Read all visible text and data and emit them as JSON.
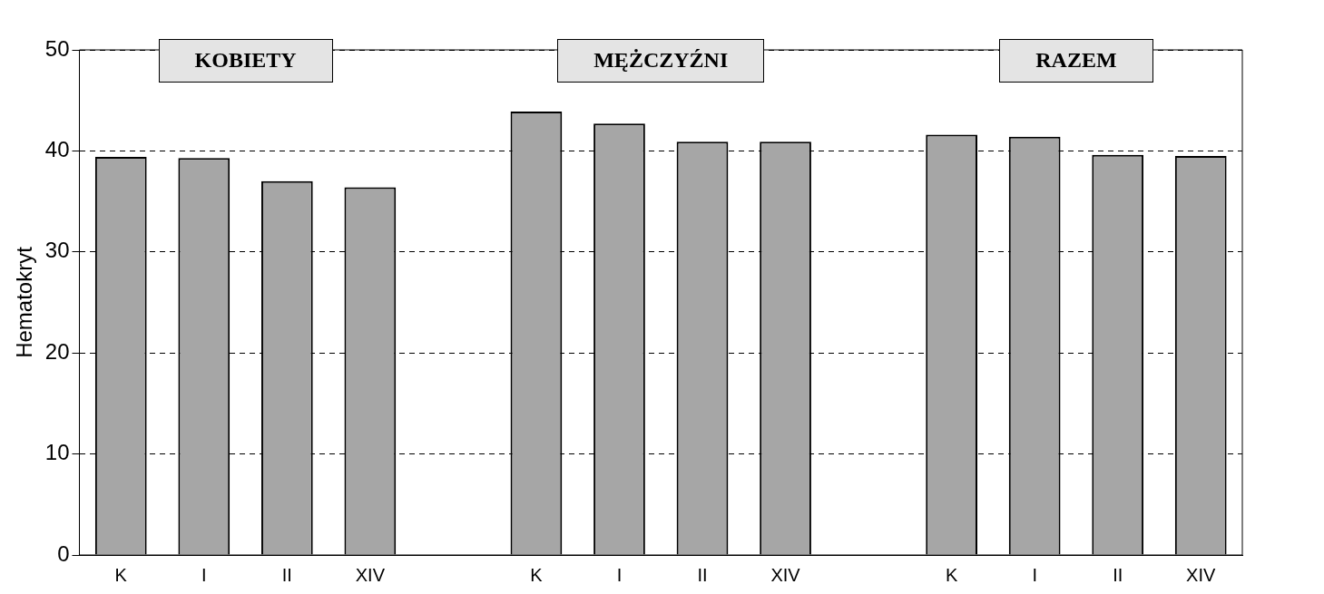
{
  "chart_data": {
    "type": "bar",
    "ylabel": "Hematokryt",
    "categories": [
      "K",
      "I",
      "II",
      "XIV",
      null,
      "K",
      "I",
      "II",
      "XIV",
      null,
      "K",
      "I",
      "II",
      "XIV"
    ],
    "values": [
      39.4,
      39.3,
      37.0,
      36.4,
      null,
      43.9,
      42.7,
      40.9,
      40.9,
      null,
      41.6,
      41.4,
      39.6,
      39.5
    ],
    "color": "#a6a6a6",
    "ylim": [
      0,
      50
    ],
    "yticks": [
      0,
      10,
      20,
      30,
      40,
      50
    ],
    "grid": "y",
    "annotations": [
      "KOBIETY",
      "MĘŻCZYŹNI",
      "RAZEM"
    ]
  }
}
